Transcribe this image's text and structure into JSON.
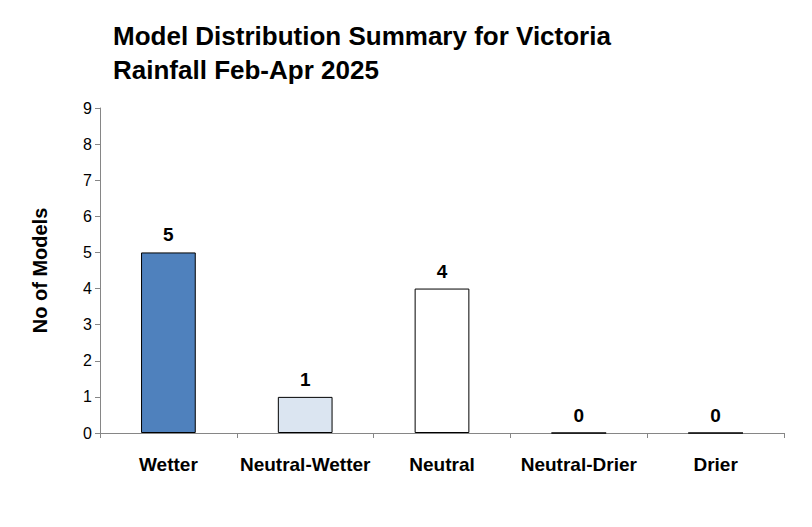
{
  "chart_data": {
    "type": "bar",
    "title": "Model Distribution Summary for Victoria\nRainfall Feb-Apr 2025",
    "y_label": "No of Models",
    "categories": [
      "Wetter",
      "Neutral-Wetter",
      "Neutral",
      "Neutral-Drier",
      "Drier"
    ],
    "values": [
      5,
      1,
      4,
      0,
      0
    ],
    "colors": [
      "#4f81bd",
      "#dbe5f1",
      "#ffffff",
      "#ffffff",
      "#ffffff"
    ],
    "ylim": [
      0,
      9
    ],
    "yticks": [
      0,
      1,
      2,
      3,
      4,
      5,
      6,
      7,
      8,
      9
    ],
    "grid": false,
    "data_labels": true
  }
}
